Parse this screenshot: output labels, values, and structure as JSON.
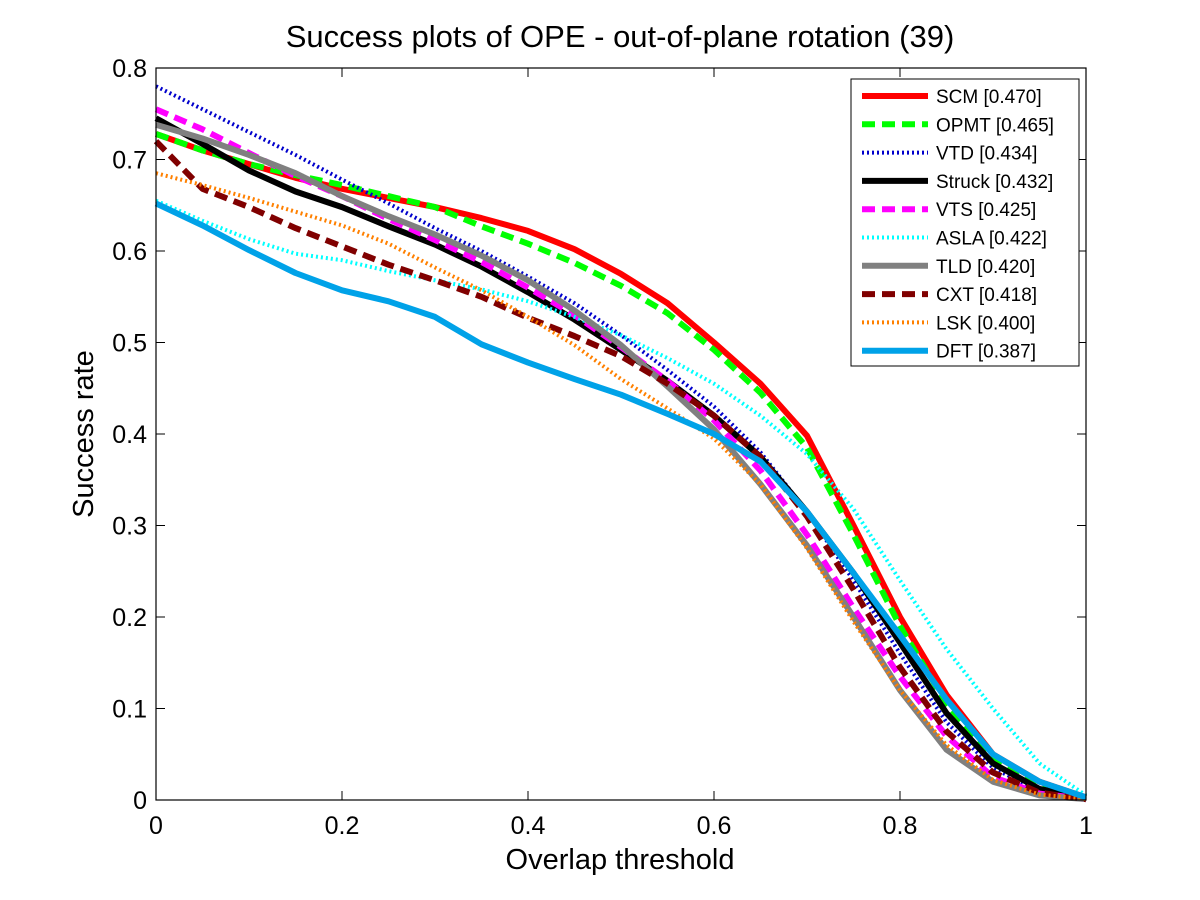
{
  "chart_data": {
    "type": "line",
    "title": "Success plots of OPE - out-of-plane rotation (39)",
    "xlabel": "Overlap threshold",
    "ylabel": "Success rate",
    "xlim": [
      0,
      1
    ],
    "ylim": [
      0,
      0.8
    ],
    "xticks": [
      "0",
      "0.2",
      "0.4",
      "0.6",
      "0.8",
      "1"
    ],
    "yticks": [
      "0",
      "0.1",
      "0.2",
      "0.3",
      "0.4",
      "0.5",
      "0.6",
      "0.7",
      "0.8"
    ],
    "grid": false,
    "legend_position": "top-right",
    "x": [
      0,
      0.05,
      0.1,
      0.15,
      0.2,
      0.25,
      0.3,
      0.35,
      0.4,
      0.45,
      0.5,
      0.55,
      0.6,
      0.65,
      0.7,
      0.75,
      0.8,
      0.85,
      0.9,
      0.95,
      1.0
    ],
    "series": [
      {
        "name": "SCM [0.470]",
        "color": "#ff0000",
        "style": "solid",
        "values": [
          0.728,
          0.71,
          0.695,
          0.68,
          0.668,
          0.658,
          0.648,
          0.636,
          0.622,
          0.602,
          0.575,
          0.543,
          0.5,
          0.455,
          0.398,
          0.3,
          0.2,
          0.115,
          0.05,
          0.02,
          0.003
        ]
      },
      {
        "name": "OPMT [0.465]",
        "color": "#00ff00",
        "style": "dashed",
        "values": [
          0.728,
          0.71,
          0.695,
          0.683,
          0.672,
          0.66,
          0.648,
          0.627,
          0.608,
          0.587,
          0.562,
          0.532,
          0.492,
          0.445,
          0.385,
          0.29,
          0.19,
          0.105,
          0.045,
          0.015,
          0.002
        ]
      },
      {
        "name": "VTD [0.434]",
        "color": "#0000cc",
        "style": "dotted",
        "values": [
          0.78,
          0.755,
          0.73,
          0.705,
          0.678,
          0.652,
          0.625,
          0.6,
          0.572,
          0.543,
          0.508,
          0.47,
          0.43,
          0.38,
          0.315,
          0.24,
          0.16,
          0.085,
          0.035,
          0.01,
          0.002
        ]
      },
      {
        "name": "Struck [0.432]",
        "color": "#000000",
        "style": "solid",
        "values": [
          0.745,
          0.717,
          0.688,
          0.665,
          0.648,
          0.627,
          0.607,
          0.583,
          0.555,
          0.525,
          0.492,
          0.458,
          0.42,
          0.375,
          0.315,
          0.248,
          0.172,
          0.095,
          0.04,
          0.012,
          0.002
        ]
      },
      {
        "name": "VTS [0.425]",
        "color": "#ff00ff",
        "style": "dashed",
        "values": [
          0.755,
          0.733,
          0.707,
          0.682,
          0.66,
          0.635,
          0.612,
          0.588,
          0.56,
          0.53,
          0.495,
          0.458,
          0.415,
          0.36,
          0.29,
          0.21,
          0.135,
          0.07,
          0.025,
          0.007,
          0.001
        ]
      },
      {
        "name": "ASLA [0.422]",
        "color": "#00ffff",
        "style": "dotted",
        "values": [
          0.655,
          0.633,
          0.613,
          0.597,
          0.59,
          0.578,
          0.568,
          0.558,
          0.545,
          0.528,
          0.508,
          0.483,
          0.455,
          0.42,
          0.378,
          0.318,
          0.24,
          0.165,
          0.1,
          0.04,
          0.005
        ]
      },
      {
        "name": "TLD [0.420]",
        "color": "#808080",
        "style": "solid",
        "values": [
          0.738,
          0.723,
          0.705,
          0.685,
          0.66,
          0.638,
          0.618,
          0.595,
          0.568,
          0.535,
          0.497,
          0.452,
          0.405,
          0.345,
          0.278,
          0.2,
          0.12,
          0.055,
          0.02,
          0.005,
          0.001
        ]
      },
      {
        "name": "CXT [0.418]",
        "color": "#800000",
        "style": "dashed",
        "values": [
          0.72,
          0.668,
          0.648,
          0.625,
          0.605,
          0.585,
          0.568,
          0.55,
          0.527,
          0.507,
          0.485,
          0.455,
          0.42,
          0.375,
          0.31,
          0.23,
          0.145,
          0.075,
          0.03,
          0.008,
          0.001
        ]
      },
      {
        "name": "LSK [0.400]",
        "color": "#ff8000",
        "style": "dotted",
        "values": [
          0.685,
          0.672,
          0.658,
          0.643,
          0.628,
          0.608,
          0.582,
          0.557,
          0.528,
          0.497,
          0.46,
          0.428,
          0.395,
          0.345,
          0.275,
          0.195,
          0.12,
          0.06,
          0.022,
          0.006,
          0.001
        ]
      },
      {
        "name": "DFT [0.387]",
        "color": "#00a2e8",
        "style": "solid",
        "values": [
          0.652,
          0.628,
          0.601,
          0.576,
          0.557,
          0.545,
          0.528,
          0.498,
          0.478,
          0.46,
          0.443,
          0.422,
          0.4,
          0.37,
          0.315,
          0.248,
          0.18,
          0.11,
          0.05,
          0.02,
          0.003
        ]
      }
    ]
  }
}
